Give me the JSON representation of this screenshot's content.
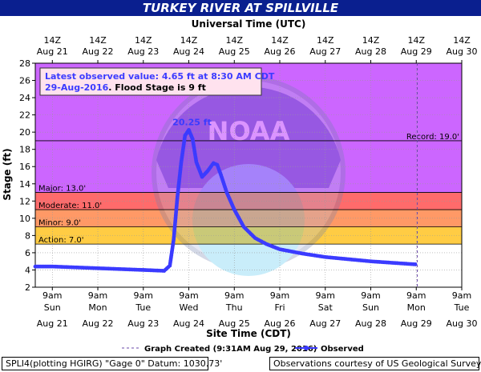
{
  "banner_title": "TURKEY RIVER AT SPILLVILLE",
  "top_axis_title": "Universal Time (UTC)",
  "footer": {
    "left": "SPLI4(plotting HGIRG) \"Gage 0\" Datum: 1030.73'",
    "right": "Observations courtesy of US Geological Survey"
  },
  "colors": {
    "banner": "#0a1f8f",
    "series": "#3b3bff",
    "major_band": "#ff6b6b",
    "moderate_band": "#ff9966",
    "minor_band": "#ffff66",
    "above_major": "#cc66ff"
  },
  "chart_data": {
    "type": "line",
    "title": "TURKEY RIVER AT SPILLVILLE",
    "xlabel": "Site Time (CDT)",
    "x2label": "Universal Time (UTC)",
    "ylabel": "Stage (ft)",
    "ylim": [
      2,
      28
    ],
    "yticks": [
      2,
      4,
      6,
      8,
      10,
      12,
      14,
      16,
      18,
      20,
      22,
      24,
      26,
      28
    ],
    "grid": true,
    "x_ticks_local": [
      {
        "time": "9am",
        "day": "Sun",
        "date": "Aug 21"
      },
      {
        "time": "9am",
        "day": "Mon",
        "date": "Aug 22"
      },
      {
        "time": "9am",
        "day": "Tue",
        "date": "Aug 23"
      },
      {
        "time": "9am",
        "day": "Wed",
        "date": "Aug 24"
      },
      {
        "time": "9am",
        "day": "Thu",
        "date": "Aug 25"
      },
      {
        "time": "9am",
        "day": "Fri",
        "date": "Aug 26"
      },
      {
        "time": "9am",
        "day": "Sat",
        "date": "Aug 27"
      },
      {
        "time": "9am",
        "day": "Sun",
        "date": "Aug 28"
      },
      {
        "time": "9am",
        "day": "Mon",
        "date": "Aug 29"
      },
      {
        "time": "9am",
        "day": "Tue",
        "date": "Aug 30"
      }
    ],
    "x_ticks_utc": [
      {
        "time": "14Z",
        "date": "Aug 21"
      },
      {
        "time": "14Z",
        "date": "Aug 22"
      },
      {
        "time": "14Z",
        "date": "Aug 23"
      },
      {
        "time": "14Z",
        "date": "Aug 24"
      },
      {
        "time": "14Z",
        "date": "Aug 25"
      },
      {
        "time": "14Z",
        "date": "Aug 26"
      },
      {
        "time": "14Z",
        "date": "Aug 27"
      },
      {
        "time": "14Z",
        "date": "Aug 28"
      },
      {
        "time": "14Z",
        "date": "Aug 29"
      },
      {
        "time": "14Z",
        "date": "Aug 30"
      }
    ],
    "thresholds": [
      {
        "label": "Action: 7.0'",
        "value": 7.0,
        "color": "#ffff66"
      },
      {
        "label": "Minor: 9.0'",
        "value": 9.0,
        "color": "#ffcc44"
      },
      {
        "label": "Moderate: 11.0'",
        "value": 11.0,
        "color": "#ff9966"
      },
      {
        "label": "Major: 13.0'",
        "value": 13.0,
        "color": "#ff6b6b"
      },
      {
        "label": "Record: 19.0'",
        "value": 19.0
      }
    ],
    "annotation": {
      "line1": "Latest observed value: 4.65 ft at 8:30 AM CDT",
      "line2_date": "29-Aug-2016",
      "line2_rest": ".  Flood Stage is 9 ft"
    },
    "peak_label": "20.25 ft",
    "peak": {
      "x": "Aug 24 09:00",
      "y": 20.25
    },
    "graph_created_x": "Aug 29 09:31",
    "series": [
      {
        "name": "Observed",
        "x": [
          "Aug 21 00:00",
          "Aug 21 09:00",
          "Aug 22 09:00",
          "Aug 23 09:00",
          "Aug 23 20:00",
          "Aug 23 23:00",
          "Aug 24 01:00",
          "Aug 24 03:00",
          "Aug 24 05:00",
          "Aug 24 07:00",
          "Aug 24 09:00",
          "Aug 24 11:00",
          "Aug 24 13:00",
          "Aug 24 16:00",
          "Aug 24 19:00",
          "Aug 24 22:00",
          "Aug 25 00:00",
          "Aug 25 02:00",
          "Aug 25 05:00",
          "Aug 25 09:00",
          "Aug 25 14:00",
          "Aug 25 20:00",
          "Aug 26 02:00",
          "Aug 26 09:00",
          "Aug 26 21:00",
          "Aug 27 09:00",
          "Aug 28 09:00",
          "Aug 29 08:30"
        ],
        "values": [
          4.4,
          4.4,
          4.2,
          4.0,
          3.9,
          4.5,
          7.5,
          12.5,
          16.5,
          19.6,
          20.25,
          19.2,
          16.5,
          14.8,
          15.5,
          16.4,
          16.2,
          15.0,
          13.0,
          11.0,
          9.0,
          7.7,
          7.0,
          6.4,
          5.9,
          5.5,
          5.0,
          4.65
        ]
      }
    ],
    "legend": [
      {
        "label": "Graph Created (9:31AM Aug 29, 2016)",
        "style": "dashed"
      },
      {
        "label": "Observed",
        "style": "line-marker"
      }
    ]
  }
}
